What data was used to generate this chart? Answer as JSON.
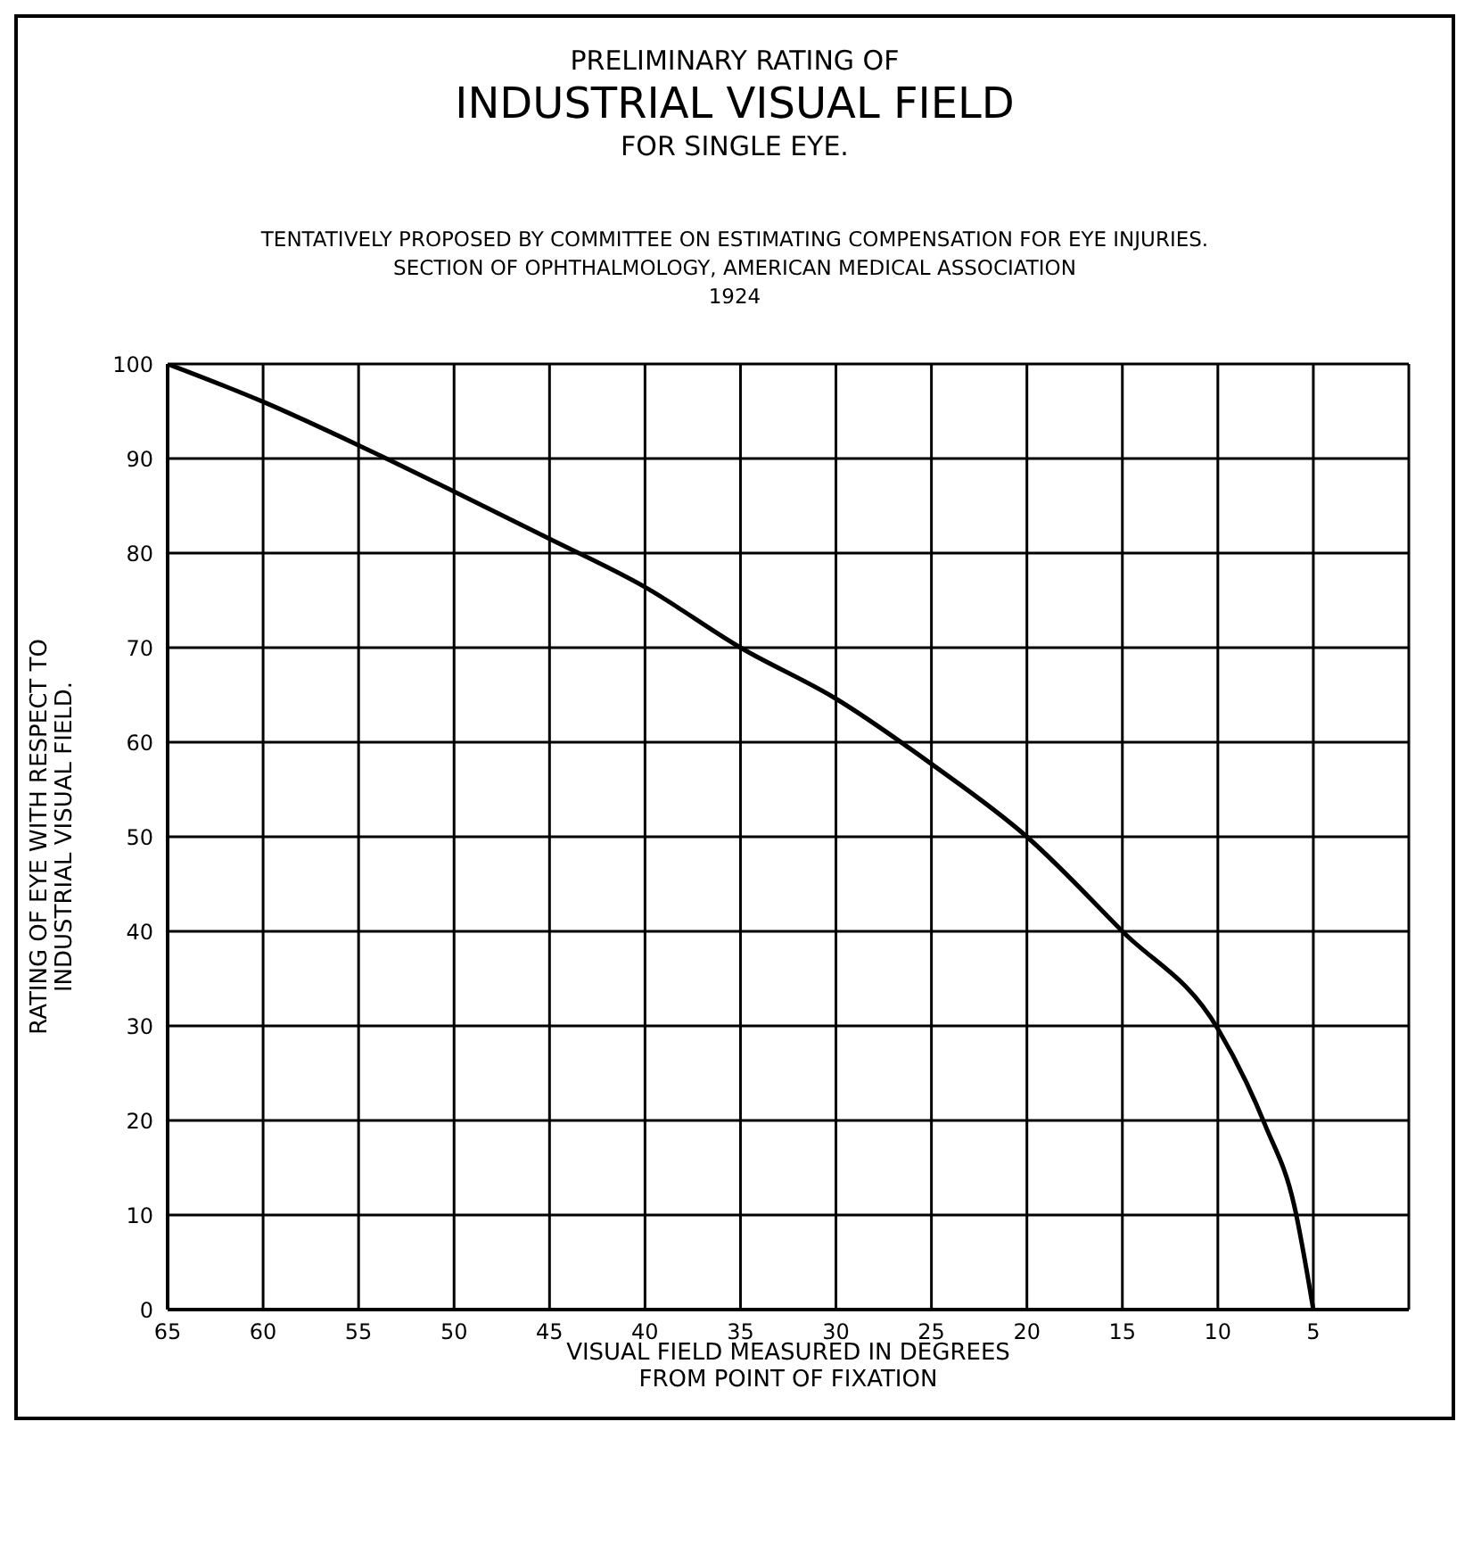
{
  "chart_data": {
    "type": "line",
    "title": "PRELIMINARY RATING OF\nINDUSTRIAL VISUAL FIELD\nFOR SINGLE EYE.",
    "subtitle": "TENTATIVELY PROPOSED BY COMMITTEE ON ESTIMATING COMPENSATION FOR EYE INJURIES.\nSECTION OF OPHTHALMOLOGY, AMERICAN MEDICAL ASSOCIATION\n1924",
    "xlabel": "VISUAL FIELD MEASURED IN DEGREES\nFROM POINT OF FIXATION",
    "ylabel": "RATING OF EYE WITH RESPECT TO\nINDUSTRIAL VISUAL FIELD.",
    "x": [
      65,
      60,
      55,
      50,
      45,
      40,
      35,
      30,
      25,
      20,
      15,
      10,
      8.5,
      7.5,
      6,
      5
    ],
    "series": [
      {
        "color": "#000000",
        "values": [
          100,
          96,
          91.4,
          86.5,
          81.5,
          76.4,
          70,
          64.6,
          57.7,
          50,
          40,
          29.7,
          24,
          19.4,
          11,
          0
        ]
      }
    ],
    "xlim": [
      65,
      0
    ],
    "xticks": [
      65,
      60,
      55,
      50,
      45,
      40,
      35,
      30,
      25,
      20,
      15,
      10,
      5,
      {
        "value": 0,
        "label": null
      }
    ],
    "ylim": [
      0,
      100
    ],
    "yticks": [
      0,
      10,
      20,
      30,
      40,
      50,
      60,
      70,
      80,
      90,
      100
    ],
    "grid": true,
    "marker": "none",
    "line_style": "solid"
  }
}
